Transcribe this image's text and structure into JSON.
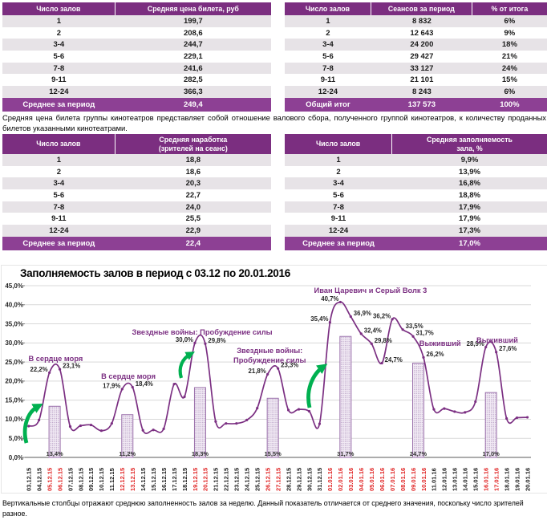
{
  "tables": [
    {
      "headers": [
        "Число залов",
        "Средняя цена билета, руб"
      ],
      "rows": [
        [
          "1",
          "199,7"
        ],
        [
          "2",
          "208,6"
        ],
        [
          "3-4",
          "244,7"
        ],
        [
          "5-6",
          "229,1"
        ],
        [
          "7-8",
          "241,6"
        ],
        [
          "9-11",
          "282,5"
        ],
        [
          "12-24",
          "366,3"
        ]
      ],
      "total": [
        "Среднее за период",
        "249,4"
      ]
    },
    {
      "headers": [
        "Число залов",
        "Сеансов за период",
        "% от итога"
      ],
      "rows": [
        [
          "1",
          "8 832",
          "6%"
        ],
        [
          "2",
          "12 643",
          "9%"
        ],
        [
          "3-4",
          "24 200",
          "18%"
        ],
        [
          "5-6",
          "29 427",
          "21%"
        ],
        [
          "7-8",
          "33 127",
          "24%"
        ],
        [
          "9-11",
          "21 101",
          "15%"
        ],
        [
          "12-24",
          "8 243",
          "6%"
        ]
      ],
      "total": [
        "Общий итог",
        "137 573",
        "100%"
      ]
    },
    {
      "headers": [
        "Число залов",
        "Средняя наработка (зрителей на сеанс)"
      ],
      "rows": [
        [
          "1",
          "18,8"
        ],
        [
          "2",
          "18,6"
        ],
        [
          "3-4",
          "20,3"
        ],
        [
          "5-6",
          "22,7"
        ],
        [
          "7-8",
          "24,0"
        ],
        [
          "9-11",
          "25,5"
        ],
        [
          "12-24",
          "22,9"
        ]
      ],
      "total": [
        "Среднее за период",
        "22,4"
      ]
    },
    {
      "headers": [
        "Число залов",
        "Средняя заполняемость зала, %"
      ],
      "rows": [
        [
          "1",
          "9,9%"
        ],
        [
          "2",
          "13,9%"
        ],
        [
          "3-4",
          "16,8%"
        ],
        [
          "5-6",
          "18,8%"
        ],
        [
          "7-8",
          "17,9%"
        ],
        [
          "9-11",
          "17,9%"
        ],
        [
          "12-24",
          "17,3%"
        ]
      ],
      "total": [
        "Среднее за период",
        "17,0%"
      ]
    }
  ],
  "description": "Средняя цена билета группы кинотеатров представляет собой отношение валового сбора, полученного группой кинотеатров, к количеству проданных билетов указанными кинотеатрами.",
  "footnote": "Вертикальные столбцы отражают среднюю заполненность залов за неделю. Данный показатель отличается от среднего значения, поскольку число зрителей разное.",
  "colors": {
    "header_purple": "#7B2E80",
    "total_purple": "#8D4094",
    "row_gray": "#E7E3E7",
    "line_purple": "#7B2F82",
    "bar_fill": "#F2EBF5",
    "bar_border": "#9C72AC",
    "arrow_green": "#00B050",
    "red_date": "#E02020",
    "grid_gray": "#D9D9D9"
  },
  "chart_data": {
    "type": "line+bar",
    "title": "Заполняемость залов в период с 03.12 по 20.01.2016",
    "ylim": [
      0,
      45
    ],
    "ytick_step": 5,
    "grid": true,
    "x": [
      "03.12.15",
      "04.12.15",
      "05.12.15",
      "06.12.15",
      "07.12.15",
      "08.12.15",
      "09.12.15",
      "10.12.15",
      "11.12.15",
      "12.12.15",
      "13.12.15",
      "14.12.15",
      "15.12.15",
      "16.12.15",
      "17.12.15",
      "18.12.15",
      "19.12.15",
      "20.12.15",
      "21.12.15",
      "22.12.15",
      "23.12.15",
      "24.12.15",
      "25.12.15",
      "26.12.15",
      "27.12.15",
      "28.12.15",
      "29.12.15",
      "30.12.15",
      "31.12.15",
      "01.01.16",
      "02.01.16",
      "03.01.16",
      "04.01.16",
      "05.01.16",
      "06.01.16",
      "07.01.16",
      "08.01.16",
      "09.01.16",
      "10.01.16",
      "11.01.16",
      "12.01.16",
      "13.01.16",
      "14.01.16",
      "15.01.16",
      "16.01.16",
      "17.01.16",
      "18.01.16",
      "19.01.16",
      "20.01.16"
    ],
    "red_dates": [
      "05.12.15",
      "06.12.15",
      "12.12.15",
      "13.12.15",
      "19.12.15",
      "20.12.15",
      "26.12.15",
      "27.12.15",
      "01.01.16",
      "02.01.16",
      "03.01.16",
      "04.01.16",
      "05.01.16",
      "06.01.16",
      "07.01.16",
      "08.01.16",
      "09.01.16",
      "10.01.16",
      "16.01.16",
      "17.01.16"
    ],
    "series": [
      {
        "name": "Заполняемость залов по дням",
        "values": [
          8.2,
          9.8,
          22.2,
          23.1,
          8.1,
          8.3,
          8.5,
          7.0,
          8.9,
          17.9,
          18.4,
          7.1,
          7.2,
          7.5,
          19.2,
          15.9,
          30.0,
          29.8,
          9.4,
          8.9,
          8.9,
          9.8,
          12.9,
          21.8,
          23.3,
          12.4,
          12.6,
          12.1,
          8.8,
          35.4,
          40.7,
          36.9,
          32.4,
          29.8,
          24.7,
          36.2,
          33.5,
          31.7,
          26.2,
          12.6,
          12.8,
          12.0,
          11.8,
          14.6,
          28.9,
          27.6,
          10.2,
          10.4,
          10.5
        ]
      }
    ],
    "point_labels": [
      {
        "date": "05.12.15",
        "text": "22,2%",
        "side": "e"
      },
      {
        "date": "06.12.15",
        "text": "23,1%",
        "side": "s"
      },
      {
        "date": "12.12.15",
        "text": "17,9%",
        "side": "e"
      },
      {
        "date": "13.12.15",
        "text": "18,4%",
        "side": "s"
      },
      {
        "date": "19.12.15",
        "text": "30,0%",
        "side": "e"
      },
      {
        "date": "20.12.15",
        "text": "29,8%",
        "side": "s"
      },
      {
        "date": "26.12.15",
        "text": "21,8%",
        "side": "e"
      },
      {
        "date": "27.12.15",
        "text": "23,3%",
        "side": "s"
      },
      {
        "date": "01.01.16",
        "text": "35,4%",
        "side": "e"
      },
      {
        "date": "02.01.16",
        "text": "40,7%",
        "side": "e"
      },
      {
        "date": "03.01.16",
        "text": "36,9%",
        "side": "s"
      },
      {
        "date": "04.01.16",
        "text": "32,4%",
        "side": "s"
      },
      {
        "date": "05.01.16",
        "text": "29,8%",
        "side": "s"
      },
      {
        "date": "06.01.16",
        "text": "24,7%",
        "side": "s"
      },
      {
        "date": "07.01.16",
        "text": "36,2%",
        "side": "e"
      },
      {
        "date": "08.01.16",
        "text": "33,5%",
        "side": "s"
      },
      {
        "date": "09.01.16",
        "text": "31,7%",
        "side": "s"
      },
      {
        "date": "10.01.16",
        "text": "26,2%",
        "side": "s"
      },
      {
        "date": "16.01.16",
        "text": "28,9%",
        "side": "e"
      },
      {
        "date": "17.01.16",
        "text": "27,6%",
        "side": "s"
      }
    ],
    "week_bars": [
      {
        "dates": [
          "05.12.15",
          "06.12.15"
        ],
        "value": 13.4,
        "label": "13,4%"
      },
      {
        "dates": [
          "12.12.15",
          "13.12.15"
        ],
        "value": 11.2,
        "label": "11,2%"
      },
      {
        "dates": [
          "19.12.15",
          "20.12.15"
        ],
        "value": 18.3,
        "label": "18,3%"
      },
      {
        "dates": [
          "26.12.15",
          "27.12.15"
        ],
        "value": 15.5,
        "label": "15,5%"
      },
      {
        "dates": [
          "02.01.16",
          "03.01.16"
        ],
        "value": 31.7,
        "label": "31,7%"
      },
      {
        "dates": [
          "09.01.16",
          "10.01.16"
        ],
        "value": 24.7,
        "label": "24,7%"
      },
      {
        "dates": [
          "16.01.16",
          "17.01.16"
        ],
        "value": 17.0,
        "label": "17,0%"
      }
    ],
    "annotations": [
      {
        "lines": [
          "В сердце моря"
        ],
        "x_index": 2.6,
        "y_pct": 25.2
      },
      {
        "lines": [
          "В сердце моря"
        ],
        "x_index": 9.6,
        "y_pct": 20.6
      },
      {
        "lines": [
          "Звездные войны: Пробуждение силы"
        ],
        "x_index": 16.7,
        "y_pct": 32.2
      },
      {
        "lines": [
          "Звездные войны:",
          "Пробуждение силы"
        ],
        "x_index": 23.2,
        "y_pct": 27.3
      },
      {
        "lines": [
          "Иван Царевич и Серый Волк 3"
        ],
        "x_index": 32.9,
        "y_pct": 43.1
      },
      {
        "lines": [
          "Выживший"
        ],
        "x_index": 39.6,
        "y_pct": 29.2
      },
      {
        "lines": [
          "Выживший"
        ],
        "x_index": 45.1,
        "y_pct": 30.1
      }
    ]
  }
}
